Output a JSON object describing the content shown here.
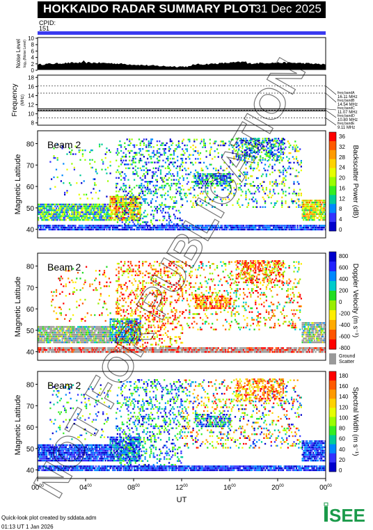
{
  "header": {
    "title": "HOKKAIDO RADAR SUMMARY PLOT",
    "date": "31 Dec 2025"
  },
  "cpid": {
    "label": "CPID:",
    "value": "151"
  },
  "noise": {
    "ylabel": "Noise Level",
    "ysub": "log₁₀(Noise Level)",
    "ticks": [
      "10",
      "8",
      "6",
      "4",
      "2",
      "0"
    ]
  },
  "frequency": {
    "ylabel": "Frequency",
    "ysub": "(MHz)",
    "ticks": [
      "18",
      "16",
      "14",
      "12",
      "10",
      "8"
    ],
    "bands": [
      {
        "name": "freq bandA",
        "value": "16.11 MHz",
        "mhz": 16.11
      },
      {
        "name": "freq bandB",
        "value": "14.54 MHz",
        "mhz": 14.54
      },
      {
        "name": "freq bandC",
        "value": "11.07 MHz",
        "mhz": 11.07
      },
      {
        "name": "freq bandD",
        "value": "10.80 MHz",
        "mhz": 10.8
      },
      {
        "name": "freq bandE",
        "value": "9.11 MHz",
        "mhz": 9.11
      }
    ]
  },
  "chart_data": [
    {
      "type": "heatmap",
      "panel": "backscatter-power",
      "beam_label": "Beam  2",
      "ylabel": "Magnetic Latitude",
      "ytick_labels": [
        "80",
        "70",
        "60",
        "50",
        "40"
      ],
      "colorbar_label": "Backscatter Power (dB)",
      "colorbar_ticks": [
        "36",
        "32",
        "28",
        "24",
        "20",
        "16",
        "12",
        "8",
        "4",
        "0"
      ],
      "colors": [
        "#ff0000",
        "#ff5a00",
        "#ff9a00",
        "#ffd200",
        "#e6ff00",
        "#9aff00",
        "#33ee22",
        "#00cc99",
        "#0088ff",
        "#3333ff",
        "#0000cc"
      ]
    },
    {
      "type": "heatmap",
      "panel": "doppler-velocity",
      "beam_label": "Beam  2",
      "ylabel": "Magnetic Latitude",
      "ytick_labels": [
        "80",
        "70",
        "60",
        "50",
        "40"
      ],
      "colorbar_label": "Doppler Velocity (m s⁻¹)",
      "colorbar_ticks": [
        "800",
        "600",
        "400",
        "200",
        "0",
        "-200",
        "-400",
        "-600",
        "-800"
      ],
      "colors": [
        "#0000cc",
        "#2222ff",
        "#0088ff",
        "#00cccc",
        "#22dd22",
        "#99ee00",
        "#ffee00",
        "#ffaa00",
        "#ff5500",
        "#ff0000"
      ],
      "ground_scatter_label": [
        "Ground",
        "Scatter"
      ],
      "ground_color": "#999999"
    },
    {
      "type": "heatmap",
      "panel": "spectral-width",
      "beam_label": "Beam  2",
      "ylabel": "Magnetic Latitude",
      "ytick_labels": [
        "80",
        "70",
        "60",
        "50",
        "40"
      ],
      "colorbar_label": "Spectral Width (m s⁻¹)",
      "colorbar_ticks": [
        "180",
        "160",
        "140",
        "120",
        "100",
        "80",
        "60",
        "40",
        "20",
        "0"
      ],
      "colors": [
        "#ff0000",
        "#ff5a00",
        "#ff9a00",
        "#ffd200",
        "#e6ff00",
        "#9aff00",
        "#33ee22",
        "#00cc99",
        "#0088ff",
        "#3333ff",
        "#0000cc"
      ]
    }
  ],
  "xaxis": {
    "label": "UT",
    "ticks": [
      {
        "h": "00",
        "m": "00"
      },
      {
        "h": "04",
        "m": "00"
      },
      {
        "h": "08",
        "m": "00"
      },
      {
        "h": "12",
        "m": "00"
      },
      {
        "h": "16",
        "m": "00"
      },
      {
        "h": "20",
        "m": "00"
      },
      {
        "h": "00",
        "m": "00"
      }
    ]
  },
  "watermark": "NOT FOR PUBLICATION",
  "footer": {
    "line1": "Quick-look plot created by sddata.adm",
    "line2": "01:13 UT  1 Jan 2026"
  },
  "logo": {
    "text": "ISEE",
    "color": "#1a9a4a"
  }
}
